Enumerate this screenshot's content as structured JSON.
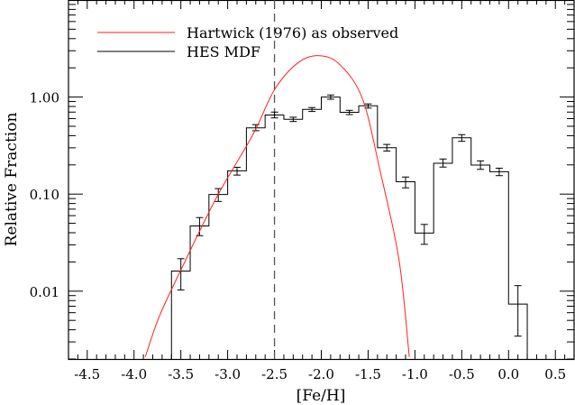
{
  "chart_data": {
    "type": "line",
    "title": "",
    "xlabel": "[Fe/H]",
    "ylabel": "Relative Fraction",
    "xlim": [
      -4.7,
      0.7
    ],
    "ylim": [
      0.002,
      10
    ],
    "yscale": "log",
    "grid": false,
    "legend_placement": "top-left",
    "x_ticks": [
      -4.5,
      -4.0,
      -3.5,
      -3.0,
      -2.5,
      -2.0,
      -1.5,
      -1.0,
      -0.5,
      0.0,
      0.5
    ],
    "x_tick_labels": [
      "-4.5",
      "-4.0",
      "-3.5",
      "-3.0",
      "-2.5",
      "-2.0",
      "-1.5",
      "-1.0",
      "-0.5",
      "0.0",
      "0.5"
    ],
    "y_ticks": [
      1.0,
      0.1,
      0.01
    ],
    "y_tick_labels": [
      "1.00",
      "0.10",
      "0.01"
    ],
    "vertical_line": {
      "x": -2.5,
      "style": "dashed",
      "color": "#555555"
    },
    "series": [
      {
        "name": "Hartwick (1976) as observed",
        "kind": "curve",
        "color": "#ff2020",
        "x": [
          -3.88,
          -3.73,
          -3.5,
          -3.12,
          -2.73,
          -2.5,
          -2.25,
          -2.02,
          -1.8,
          -1.56,
          -1.37,
          -1.17,
          -1.06
        ],
        "y": [
          0.0021,
          0.0055,
          0.0165,
          0.092,
          0.41,
          1.19,
          2.25,
          2.67,
          2.15,
          0.96,
          0.17,
          0.021,
          0.0021
        ]
      },
      {
        "name": "HES MDF",
        "kind": "histogram",
        "color": "#000000",
        "bin_width": 0.2,
        "x": [
          -3.5,
          -3.3,
          -3.1,
          -2.9,
          -2.7,
          -2.5,
          -2.3,
          -2.1,
          -1.9,
          -1.7,
          -1.5,
          -1.3,
          -1.1,
          -0.9,
          -0.7,
          -0.5,
          -0.3,
          -0.1,
          0.1
        ],
        "y": [
          0.0161,
          0.047,
          0.099,
          0.174,
          0.481,
          0.653,
          0.59,
          0.747,
          1.0,
          0.696,
          0.813,
          0.301,
          0.134,
          0.0397,
          0.208,
          0.38,
          0.199,
          0.17,
          0.00736
        ],
        "err_low": [
          0.0103,
          0.0373,
          0.084,
          0.157,
          0.45,
          0.61,
          0.56,
          0.71,
          0.95,
          0.66,
          0.77,
          0.278,
          0.116,
          0.0304,
          0.19,
          0.35,
          0.18,
          0.155,
          0.00344
        ],
        "err_high": [
          0.0216,
          0.0573,
          0.114,
          0.189,
          0.52,
          0.7,
          0.62,
          0.78,
          1.05,
          0.73,
          0.85,
          0.325,
          0.15,
          0.0487,
          0.23,
          0.41,
          0.22,
          0.185,
          0.0114
        ]
      }
    ]
  }
}
